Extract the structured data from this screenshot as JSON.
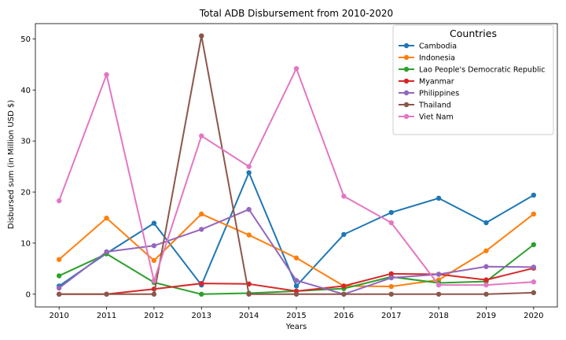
{
  "chart_data": {
    "type": "line",
    "title": "Total ADB Disbursement from 2010-2020",
    "xlabel": "Years",
    "ylabel": "Disbursed sum (in Million USD $)",
    "x": [
      2010,
      2011,
      2012,
      2013,
      2014,
      2015,
      2016,
      2017,
      2018,
      2019,
      2020
    ],
    "x_tick_labels": [
      "2010",
      "2011",
      "2012",
      "2013",
      "2014",
      "2015",
      "2016",
      "2017",
      "2018",
      "2019",
      "2020"
    ],
    "ylim": [
      -2.5,
      53
    ],
    "y_ticks": [
      0,
      10,
      20,
      30,
      40,
      50
    ],
    "y_tick_labels": [
      "0",
      "10",
      "20",
      "30",
      "40",
      "50"
    ],
    "grid": false,
    "legend": {
      "title": "Countries",
      "placement": "top-right"
    },
    "series": [
      {
        "name": "Cambodia",
        "color": "#1f77b4",
        "values": [
          1.6,
          8.0,
          13.9,
          1.8,
          23.8,
          1.6,
          11.7,
          16.0,
          18.8,
          14.0,
          19.4
        ]
      },
      {
        "name": "Indonesia",
        "color": "#ff7f0e",
        "values": [
          6.8,
          14.9,
          6.6,
          15.7,
          11.6,
          7.1,
          1.6,
          1.5,
          2.8,
          8.5,
          15.7
        ]
      },
      {
        "name": "Lao People's Democratic Republic",
        "color": "#2ca02c",
        "values": [
          3.6,
          7.9,
          2.3,
          0.0,
          0.2,
          0.6,
          1.1,
          3.4,
          2.2,
          2.5,
          9.7
        ]
      },
      {
        "name": "Myanmar",
        "color": "#d62728",
        "values": [
          0.0,
          0.0,
          1.0,
          2.1,
          2.0,
          0.6,
          1.6,
          4.0,
          3.9,
          2.8,
          5.1
        ]
      },
      {
        "name": "Philippines",
        "color": "#9467bd",
        "values": [
          1.2,
          8.3,
          9.5,
          12.7,
          16.6,
          2.7,
          0.0,
          3.2,
          3.9,
          5.4,
          5.3
        ]
      },
      {
        "name": "Thailand",
        "color": "#8c564b",
        "values": [
          0.0,
          0.0,
          0.0,
          50.6,
          0.0,
          0.0,
          0.0,
          0.0,
          0.0,
          0.0,
          0.3
        ]
      },
      {
        "name": "Viet Nam",
        "color": "#e377c2",
        "values": [
          18.3,
          43.0,
          2.6,
          31.0,
          25.0,
          44.2,
          19.2,
          14.0,
          1.8,
          1.8,
          2.4
        ]
      }
    ]
  }
}
